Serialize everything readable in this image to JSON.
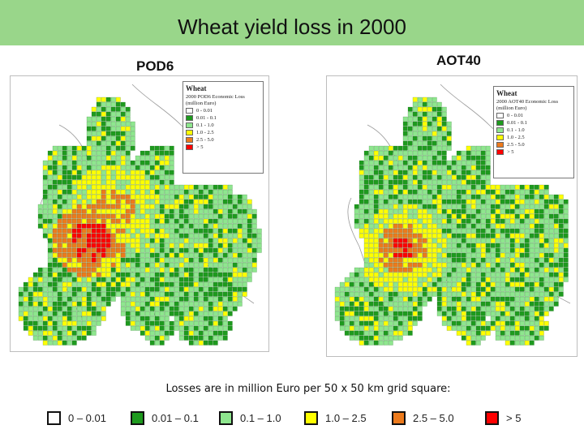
{
  "slide": {
    "title": "Wheat yield loss in 2000",
    "title_bg": "#99d68a"
  },
  "maps": [
    {
      "label": "POD6",
      "inset": {
        "title": "Wheat",
        "subtitle": "2000 POD6 Economic Loss (million Euro)",
        "classes": [
          "0 - 0.01",
          "0.01 - 0.1",
          "0.1 - 1.0",
          "1.0 - 2.5",
          "2.5 - 5.0",
          "> 5"
        ]
      }
    },
    {
      "label": "AOT40",
      "inset": {
        "title": "Wheat",
        "subtitle": "2000 AOT40 Economic Loss (million Euro)",
        "classes": [
          "0 - 0.01",
          "0.01 - 0.1",
          "0.1 - 1.0",
          "1.0 - 2.5",
          "2.5 - 5.0",
          "> 5"
        ]
      }
    }
  ],
  "caption": "Losses are in million Euro per 50 x 50 km grid square:",
  "legend": [
    {
      "label": "0 – 0.01",
      "color": "#ffffff"
    },
    {
      "label": "0.01 – 0.1",
      "color": "#1e9a1e"
    },
    {
      "label": "0.1 – 1.0",
      "color": "#8ee68e"
    },
    {
      "label": "1.0 – 2.5",
      "color": "#ffff00"
    },
    {
      "label": "2.5 – 5.0",
      "color": "#ec7a1c"
    },
    {
      "label": "> 5",
      "color": "#ff0000"
    }
  ]
}
